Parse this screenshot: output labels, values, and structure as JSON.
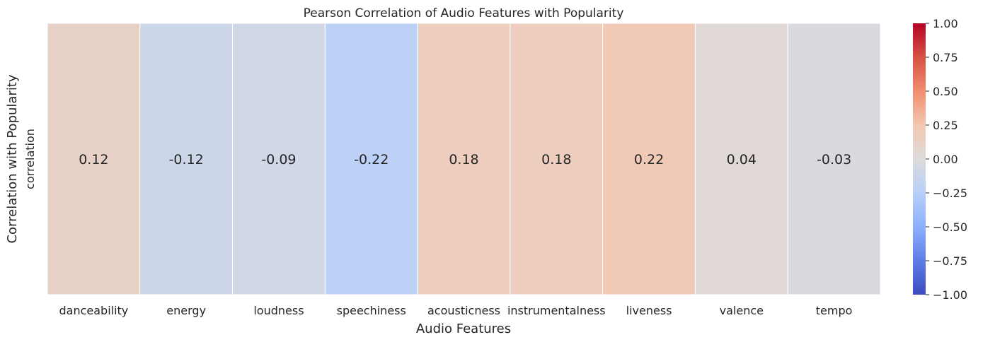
{
  "chart_data": {
    "type": "heatmap",
    "title": "Pearson Correlation of Audio Features with Popularity",
    "xlabel": "Audio Features",
    "ylabel": "Correlation with Popularity",
    "row_labels": [
      "correlation"
    ],
    "categories": [
      "danceability",
      "energy",
      "loudness",
      "speechiness",
      "acousticness",
      "instrumentalness",
      "liveness",
      "valence",
      "tempo"
    ],
    "values": [
      [
        0.12,
        -0.12,
        -0.09,
        -0.22,
        0.18,
        0.18,
        0.22,
        0.04,
        -0.03
      ]
    ],
    "value_labels": [
      "0.12",
      "-0.12",
      "-0.09",
      "-0.22",
      "0.18",
      "0.18",
      "0.22",
      "0.04",
      "-0.03"
    ],
    "colormap": "coolwarm",
    "vmin": -1.0,
    "vmax": 1.0,
    "colorbar_ticks": [
      "1.00",
      "0.75",
      "0.50",
      "0.25",
      "0.00",
      "−0.25",
      "−0.50",
      "−0.75",
      "−1.00"
    ],
    "colorbar_tick_values": [
      1.0,
      0.75,
      0.5,
      0.25,
      0.0,
      -0.25,
      -0.5,
      -0.75,
      -1.0
    ],
    "colorbar_colors": [
      "#b40426",
      "#d65244",
      "#f18d6f",
      "#f3c7b1",
      "#dddcdc",
      "#b8cff8",
      "#8db0fe",
      "#5f7ce6",
      "#3b4cc0"
    ],
    "grid": false,
    "legend": "colorbar-right"
  }
}
